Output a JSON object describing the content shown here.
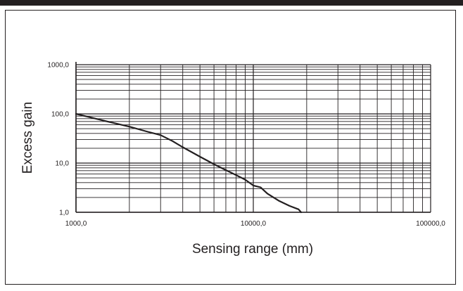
{
  "chart_data": {
    "type": "line",
    "title": "",
    "xlabel": "Sensing range (mm)",
    "ylabel": "Excess gain",
    "x_scale": "log",
    "y_scale": "log",
    "xlim": [
      1000,
      100000
    ],
    "ylim": [
      1,
      1000
    ],
    "grid": true,
    "legend": "none",
    "x_ticks": [
      {
        "value": 1000,
        "label": "1000,0"
      },
      {
        "value": 10000,
        "label": "10000,0"
      },
      {
        "value": 100000,
        "label": "100000,0"
      }
    ],
    "y_ticks": [
      {
        "value": 1000,
        "label": "1000,0"
      },
      {
        "value": 100,
        "label": "100,0"
      },
      {
        "value": 10,
        "label": "10,0"
      },
      {
        "value": 1,
        "label": "1,0"
      }
    ],
    "series": [
      {
        "color": "#231f20",
        "x": [
          1000,
          1500,
          2000,
          2500,
          3000,
          3500,
          4000,
          5000,
          6000,
          7000,
          8000,
          9000,
          10000,
          11000,
          12000,
          14000,
          16000,
          18000,
          18600
        ],
        "y": [
          100,
          70,
          55,
          44,
          37,
          28,
          21,
          13.5,
          9.5,
          7.2,
          5.7,
          4.6,
          3.5,
          3.2,
          2.4,
          1.7,
          1.35,
          1.15,
          1.0
        ]
      }
    ]
  },
  "colors": {
    "ink": "#231f20",
    "grid": "#231f20",
    "top_bar": "#231f20"
  }
}
